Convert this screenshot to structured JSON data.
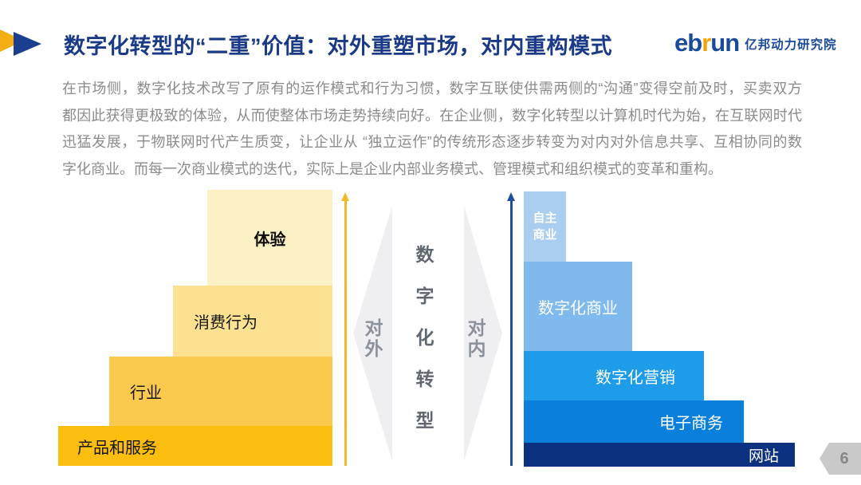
{
  "header": {
    "title": "数字化转型的“二重”价值：对外重塑市场，对内重构模式",
    "title_color": "#1a3a87",
    "logo": {
      "eb": "eb",
      "r": "r",
      "un": "un",
      "suffix": "亿邦动力研究院",
      "blue": "#1b4a9b",
      "orange": "#f0a30a"
    }
  },
  "paragraph": {
    "text_color": "#8b8b8b",
    "lines": [
      "在市场侧，数字化技术改写了原有的运作模式和行为习惯，数字互联使供需两侧的“沟通”变得空前及时，买卖双方",
      "都因此获得更极致的体验，从而使整体市场走势持续向好。在企业侧，数字化转型以计算机时代为始，在互联网时代",
      "迅猛发展，于物联网时代产生质变，让企业从 “独立运作”的传统形态逐步转变为对内对外信息共享、互相协同的数",
      "字化商业。而每一次商业模式的迭代，实际上是企业内部业务模式、管理模式和组织模式的变革和重构。"
    ]
  },
  "diagram": {
    "left_pyramid": {
      "arrow_color": "#f2b829",
      "blocks": [
        {
          "label": "体验",
          "color": "#fcf0c5"
        },
        {
          "label": "消费行为",
          "color": "#fce290"
        },
        {
          "label": "行业",
          "color": "#fcc94f"
        },
        {
          "label": "产品和服务",
          "color": "#fbbd0e"
        }
      ]
    },
    "center": {
      "outward_label": "对外",
      "inward_label": "对内",
      "middle_label_chars": [
        "数",
        "字",
        "化",
        "转",
        "型"
      ],
      "diamond_color": "#efeff2",
      "dir_label_color": "#8b919b",
      "middle_label_color": "#5f6771"
    },
    "right_pyramid": {
      "arrow_color": "#1d4fa1",
      "blocks": [
        {
          "label_line1": "自主",
          "label_line2": "商业",
          "color": "#a9cef0"
        },
        {
          "label": "数字化商业",
          "color": "#7fb9ee"
        },
        {
          "label": "数字化营销",
          "color": "#1f9ce9"
        },
        {
          "label": "电子商务",
          "color": "#0a7fdb"
        },
        {
          "label": "网站",
          "color": "#0c3180"
        }
      ]
    }
  },
  "footer": {
    "page_number": "6",
    "badge_color": "#c9c9c9",
    "number_color": "#878787"
  },
  "decoration": {
    "chevron_yellow": "#f3ae13",
    "chevron_blue": "#1b3f8f"
  }
}
